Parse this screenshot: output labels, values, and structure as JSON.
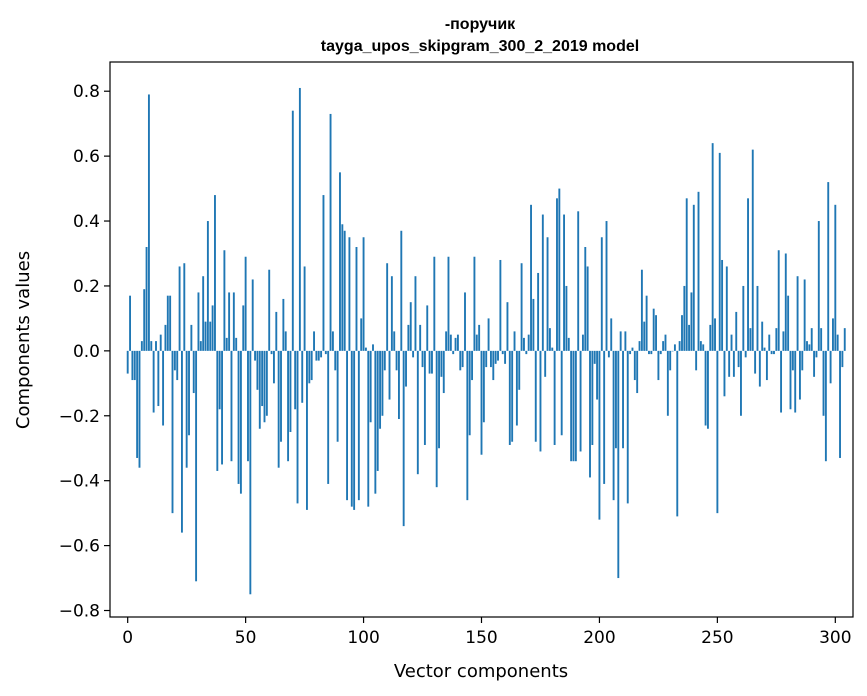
{
  "chart_data": {
    "type": "bar",
    "title_lines": [
      "-поручик",
      "tayga_upos_skipgram_300_2_2019 model"
    ],
    "xlabel": "Vector components",
    "ylabel": "Components values",
    "xlim": [
      -7.5,
      307.5
    ],
    "ylim": [
      -0.82,
      0.89
    ],
    "xticks": [
      0,
      50,
      100,
      150,
      200,
      250,
      300
    ],
    "xtick_labels": [
      "0",
      "50",
      "100",
      "150",
      "200",
      "250",
      "300"
    ],
    "yticks": [
      -0.8,
      -0.6,
      -0.4,
      -0.2,
      0.0,
      0.2,
      0.4,
      0.6,
      0.8
    ],
    "ytick_labels": [
      "−0.8",
      "−0.6",
      "−0.4",
      "−0.2",
      "0.0",
      "0.2",
      "0.4",
      "0.6",
      "0.8"
    ],
    "bar_color": "#1f77b4",
    "grid": false,
    "series": [
      {
        "name": "-поручик",
        "values": [
          -0.07,
          0.17,
          -0.09,
          -0.09,
          -0.33,
          -0.36,
          0.03,
          0.19,
          0.32,
          0.79,
          0.03,
          -0.19,
          0.03,
          -0.17,
          0.05,
          -0.23,
          0.08,
          0.17,
          0.17,
          -0.5,
          -0.06,
          -0.09,
          0.26,
          -0.56,
          0.27,
          -0.36,
          -0.26,
          0.08,
          -0.13,
          -0.71,
          0.18,
          0.03,
          0.23,
          0.09,
          0.4,
          0.09,
          0.14,
          0.48,
          -0.37,
          -0.18,
          -0.35,
          0.31,
          0.04,
          0.18,
          -0.34,
          0.18,
          0.04,
          -0.41,
          -0.44,
          0.14,
          0.29,
          -0.34,
          -0.75,
          0.22,
          -0.03,
          -0.12,
          -0.24,
          -0.17,
          -0.22,
          -0.2,
          0.25,
          -0.01,
          -0.1,
          0.12,
          -0.36,
          -0.28,
          0.16,
          0.06,
          -0.34,
          -0.25,
          0.74,
          -0.18,
          -0.47,
          0.81,
          -0.16,
          0.26,
          -0.49,
          -0.1,
          -0.09,
          0.06,
          -0.03,
          -0.03,
          -0.02,
          0.48,
          -0.01,
          -0.41,
          0.73,
          0.06,
          -0.06,
          -0.28,
          0.55,
          0.39,
          0.37,
          -0.46,
          0.35,
          -0.48,
          -0.49,
          0.32,
          -0.46,
          0.1,
          0.35,
          0.01,
          -0.48,
          -0.22,
          0.02,
          -0.44,
          -0.37,
          -0.24,
          -0.2,
          -0.06,
          0.27,
          -0.15,
          0.23,
          0.06,
          -0.06,
          -0.21,
          0.37,
          -0.54,
          -0.11,
          0.08,
          0.15,
          -0.02,
          0.23,
          -0.38,
          0.08,
          -0.05,
          -0.29,
          0.14,
          -0.07,
          -0.07,
          0.29,
          -0.42,
          -0.3,
          -0.08,
          -0.13,
          0.06,
          0.29,
          0.05,
          -0.01,
          0.04,
          0.05,
          -0.06,
          -0.05,
          0.18,
          -0.46,
          -0.26,
          -0.09,
          0.29,
          0.05,
          0.08,
          -0.32,
          -0.22,
          -0.05,
          0.1,
          -0.05,
          -0.09,
          -0.04,
          -0.03,
          0.28,
          -0.01,
          -0.04,
          0.15,
          -0.29,
          -0.28,
          0.06,
          -0.23,
          -0.12,
          0.27,
          0.04,
          -0.01,
          0.05,
          0.45,
          0.16,
          -0.28,
          0.24,
          -0.31,
          0.42,
          -0.08,
          0.35,
          0.07,
          0.01,
          -0.29,
          0.47,
          0.5,
          -0.26,
          0.42,
          0.2,
          0.04,
          -0.34,
          -0.34,
          -0.34,
          0.43,
          -0.31,
          0.05,
          0.32,
          0.26,
          -0.39,
          -0.29,
          -0.04,
          -0.15,
          -0.52,
          0.35,
          -0.41,
          0.4,
          -0.02,
          0.1,
          -0.46,
          -0.3,
          -0.7,
          0.06,
          -0.3,
          0.06,
          -0.47,
          -0.01,
          0.01,
          -0.09,
          -0.13,
          0.03,
          0.25,
          0.09,
          0.17,
          -0.01,
          -0.01,
          0.13,
          0.11,
          -0.09,
          -0.01,
          0.03,
          0.05,
          -0.2,
          -0.06,
          0.0,
          0.02,
          -0.51,
          0.03,
          0.11,
          0.2,
          0.47,
          0.08,
          0.18,
          0.45,
          -0.06,
          0.49,
          0.03,
          0.02,
          -0.23,
          -0.24,
          0.08,
          0.64,
          0.1,
          -0.5,
          0.61,
          0.28,
          -0.14,
          0.26,
          -0.08,
          0.05,
          -0.08,
          0.12,
          -0.05,
          -0.2,
          0.2,
          -0.02,
          0.47,
          0.07,
          0.62,
          -0.07,
          0.2,
          -0.11,
          0.09,
          0.01,
          -0.09,
          0.05,
          -0.01,
          -0.01,
          0.07,
          0.31,
          -0.19,
          0.06,
          0.3,
          0.17,
          -0.18,
          -0.06,
          -0.19,
          0.23,
          -0.15,
          -0.06,
          0.22,
          0.03,
          0.02,
          0.07,
          -0.08,
          -0.02,
          0.4,
          0.07,
          -0.2,
          -0.34,
          0.52,
          -0.1,
          0.1,
          0.45,
          0.05,
          -0.33,
          -0.05,
          0.07
        ]
      }
    ]
  }
}
